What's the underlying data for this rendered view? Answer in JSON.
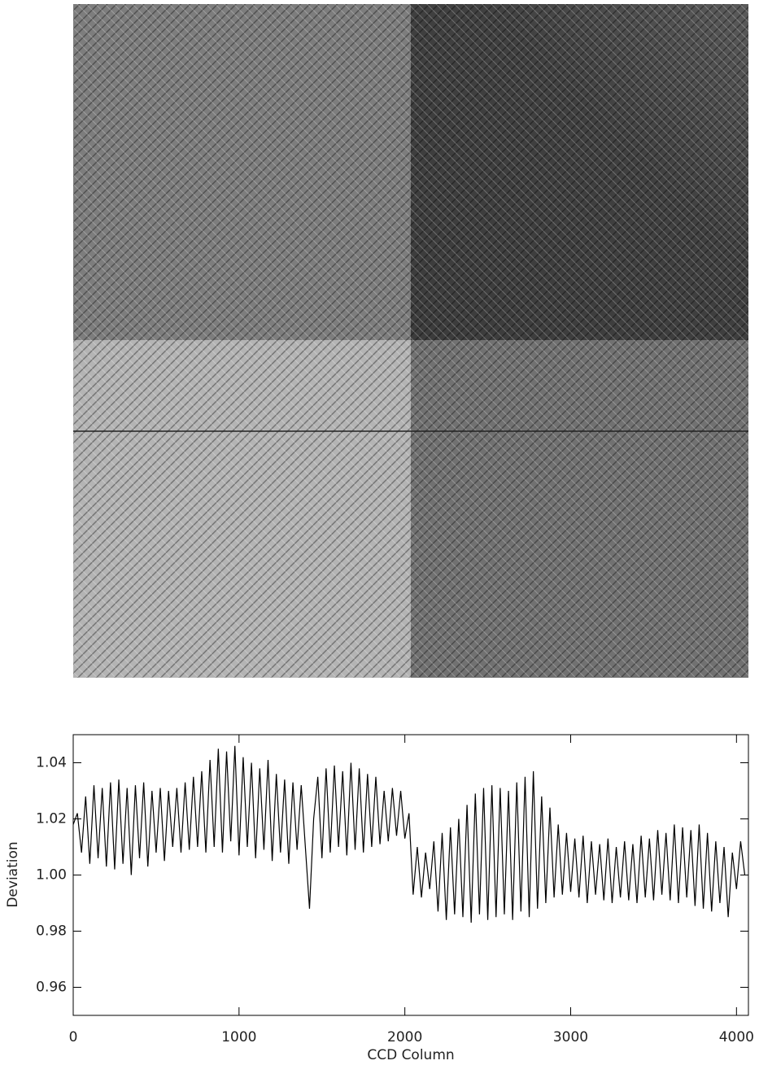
{
  "chart_data": {
    "type": "line",
    "x_label": "CCD Column",
    "y_label": "Deviation",
    "x": [
      0,
      25,
      50,
      75,
      100,
      125,
      150,
      175,
      200,
      225,
      250,
      275,
      300,
      325,
      350,
      375,
      400,
      425,
      450,
      475,
      500,
      525,
      550,
      575,
      600,
      625,
      650,
      675,
      700,
      725,
      750,
      775,
      800,
      825,
      850,
      875,
      900,
      925,
      950,
      975,
      1000,
      1025,
      1050,
      1075,
      1100,
      1125,
      1150,
      1175,
      1200,
      1225,
      1250,
      1275,
      1300,
      1325,
      1350,
      1375,
      1400,
      1425,
      1450,
      1475,
      1500,
      1525,
      1550,
      1575,
      1600,
      1625,
      1650,
      1675,
      1700,
      1725,
      1750,
      1775,
      1800,
      1825,
      1850,
      1875,
      1900,
      1925,
      1950,
      1975,
      2000,
      2025,
      2050,
      2075,
      2100,
      2125,
      2150,
      2175,
      2200,
      2225,
      2250,
      2275,
      2300,
      2325,
      2350,
      2375,
      2400,
      2425,
      2450,
      2475,
      2500,
      2525,
      2550,
      2575,
      2600,
      2625,
      2650,
      2675,
      2700,
      2725,
      2750,
      2775,
      2800,
      2825,
      2850,
      2875,
      2900,
      2925,
      2950,
      2975,
      3000,
      3025,
      3050,
      3075,
      3100,
      3125,
      3150,
      3175,
      3200,
      3225,
      3250,
      3275,
      3300,
      3325,
      3350,
      3375,
      3400,
      3425,
      3450,
      3475,
      3500,
      3525,
      3550,
      3575,
      3600,
      3625,
      3650,
      3675,
      3700,
      3725,
      3750,
      3775,
      3800,
      3825,
      3850,
      3875,
      3900,
      3925,
      3950,
      3975,
      4000,
      4025,
      4050
    ],
    "values": [
      1.018,
      1.022,
      1.008,
      1.028,
      1.004,
      1.032,
      1.006,
      1.031,
      1.003,
      1.033,
      1.002,
      1.034,
      1.004,
      1.031,
      1.0,
      1.032,
      1.006,
      1.033,
      1.003,
      1.03,
      1.008,
      1.031,
      1.005,
      1.03,
      1.01,
      1.031,
      1.008,
      1.033,
      1.009,
      1.035,
      1.01,
      1.037,
      1.008,
      1.041,
      1.01,
      1.045,
      1.008,
      1.044,
      1.012,
      1.046,
      1.007,
      1.042,
      1.01,
      1.04,
      1.006,
      1.038,
      1.009,
      1.041,
      1.005,
      1.036,
      1.008,
      1.034,
      1.004,
      1.033,
      1.009,
      1.032,
      1.01,
      0.988,
      1.02,
      1.035,
      1.006,
      1.038,
      1.008,
      1.039,
      1.01,
      1.037,
      1.007,
      1.04,
      1.009,
      1.038,
      1.008,
      1.036,
      1.01,
      1.035,
      1.011,
      1.03,
      1.012,
      1.031,
      1.014,
      1.03,
      1.013,
      1.022,
      0.993,
      1.01,
      0.992,
      1.008,
      0.995,
      1.012,
      0.987,
      1.015,
      0.984,
      1.017,
      0.986,
      1.02,
      0.985,
      1.025,
      0.983,
      1.029,
      0.986,
      1.031,
      0.984,
      1.032,
      0.985,
      1.031,
      0.986,
      1.03,
      0.984,
      1.033,
      0.987,
      1.035,
      0.985,
      1.037,
      0.988,
      1.028,
      0.99,
      1.024,
      0.992,
      1.018,
      0.993,
      1.015,
      0.994,
      1.013,
      0.992,
      1.014,
      0.99,
      1.012,
      0.993,
      1.011,
      0.991,
      1.013,
      0.99,
      1.01,
      0.992,
      1.012,
      0.991,
      1.011,
      0.99,
      1.014,
      0.992,
      1.013,
      0.991,
      1.016,
      0.993,
      1.015,
      0.991,
      1.018,
      0.99,
      1.017,
      0.992,
      1.016,
      0.989,
      1.018,
      0.988,
      1.015,
      0.987,
      1.012,
      0.99,
      1.01,
      0.985,
      1.008,
      0.995,
      1.012,
      1.0
    ],
    "color": "#000000",
    "xlim": [
      0,
      4072
    ],
    "ylim": [
      0.95,
      1.05
    ],
    "xticks": [
      0,
      1000,
      2000,
      3000,
      4000
    ],
    "yticks": [
      0.96,
      0.98,
      {
        "value": 1,
        "label": "1.00"
      },
      1.02,
      1.04
    ]
  }
}
